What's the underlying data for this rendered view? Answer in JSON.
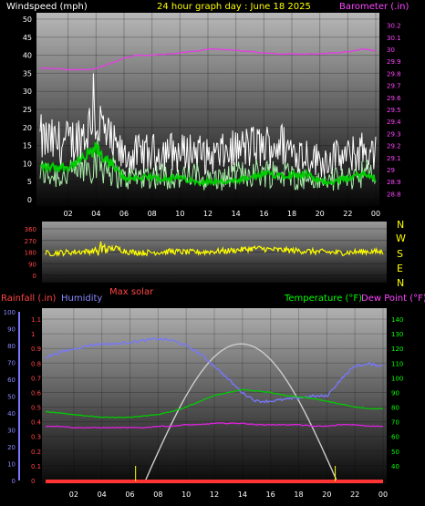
{
  "header": {
    "left_label": "Windspeed (mph)",
    "center_label": "24 hour graph day : June 18 2025",
    "right_label": "Barometer (.in)"
  },
  "wind_panel": {
    "y_left_ticks": [
      "0",
      "5",
      "10",
      "15",
      "20",
      "25",
      "30",
      "35",
      "40",
      "45",
      "50"
    ],
    "y_right_ticks": [
      "28.8",
      "28.9",
      "29",
      "29.1",
      "29.2",
      "29.3",
      "29.4",
      "29.5",
      "29.6",
      "29.7",
      "29.8",
      "29.9",
      "30",
      "30.1",
      "30.2"
    ],
    "x_ticks": [
      "02",
      "04",
      "06",
      "08",
      "10",
      "12",
      "14",
      "16",
      "18",
      "20",
      "22",
      "00"
    ]
  },
  "direction_panel": {
    "y_ticks": [
      "0",
      "90",
      "180",
      "270",
      "360"
    ],
    "compass_labels": [
      "N",
      "W",
      "S",
      "E",
      "N"
    ],
    "max_solar_label": "Max solar"
  },
  "bottom_panel": {
    "rainfall_label": "Rainfall (.in)",
    "humidity_label": "Humidity",
    "temperature_label": "Temperature (°F)",
    "dewpoint_label": "Dew Point (°F)",
    "humidity_ticks": [
      "0",
      "10",
      "20",
      "30",
      "40",
      "50",
      "60",
      "70",
      "80",
      "90",
      "100"
    ],
    "rain_ticks": [
      "0",
      "0.1",
      "0.2",
      "0.3",
      "0.4",
      "0.5",
      "0.6",
      "0.7",
      "0.8",
      "0.9",
      "1",
      "1.1"
    ],
    "temp_ticks": [
      "40",
      "50",
      "60",
      "70",
      "80",
      "90",
      "100",
      "110",
      "120",
      "130",
      "140"
    ],
    "x_ticks": [
      "02",
      "04",
      "06",
      "08",
      "10",
      "12",
      "14",
      "16",
      "18",
      "20",
      "22",
      "00"
    ]
  },
  "colors": {
    "gust": "#ffffff",
    "wind_avg": "#aaeeaa",
    "wind_smooth": "#00cc00",
    "barometer": "#e040e0",
    "direction": "#ffff00",
    "humidity": "#7777ff",
    "temperature": "#00cc00",
    "dewpoint": "#dd22dd",
    "solar": "#cccccc",
    "rain": "#ff3333",
    "label_red": "#ff4444",
    "label_yellow": "#ffff00",
    "label_green": "#00ff00",
    "label_magenta": "#ff44ff",
    "label_blue": "#8888ff"
  },
  "chart_data": [
    {
      "type": "line",
      "title": "24 hour graph day : June 18 2025",
      "xlabel": "",
      "ylabel": "Windspeed (mph)",
      "y2label": "Barometer (.in)",
      "ylim": [
        0,
        50
      ],
      "y2lim": [
        28.75,
        30.25
      ],
      "x": [
        0,
        1,
        2,
        3,
        4,
        5,
        6,
        7,
        8,
        9,
        10,
        11,
        12,
        13,
        14,
        15,
        16,
        17,
        18,
        19,
        20,
        21,
        22,
        23,
        24
      ],
      "series": [
        {
          "name": "Gust",
          "values": [
            17,
            16,
            16,
            18,
            23,
            16,
            12,
            13,
            13,
            14,
            13,
            14,
            12,
            13,
            14,
            15,
            15,
            16,
            14,
            13,
            11,
            12,
            12,
            14,
            13
          ]
        },
        {
          "name": "Average",
          "values": [
            8,
            7,
            7,
            9,
            12,
            9,
            6,
            7,
            7,
            7,
            6,
            7,
            6,
            6,
            7,
            8,
            8,
            8,
            7,
            6,
            5,
            6,
            6,
            8,
            7
          ]
        },
        {
          "name": "Average smoothed",
          "values": [
            9,
            9,
            9,
            11,
            14,
            10,
            6,
            6,
            6,
            6,
            6,
            5,
            5,
            5,
            5,
            6,
            7,
            7,
            7,
            7,
            5,
            5,
            6,
            7,
            6
          ]
        },
        {
          "name": "Barometer",
          "values": [
            29.84,
            29.84,
            29.83,
            29.83,
            29.84,
            29.88,
            29.93,
            29.95,
            29.95,
            29.96,
            29.97,
            29.98,
            30.0,
            30.0,
            29.99,
            29.98,
            29.97,
            29.96,
            29.96,
            29.96,
            29.96,
            29.97,
            29.98,
            30.0,
            29.99
          ]
        }
      ]
    },
    {
      "type": "line",
      "ylabel": "Wind direction",
      "ylim": [
        0,
        360
      ],
      "x": [
        0,
        1,
        2,
        3,
        4,
        5,
        6,
        7,
        8,
        9,
        10,
        11,
        12,
        13,
        14,
        15,
        16,
        17,
        18,
        19,
        20,
        21,
        22,
        23,
        24
      ],
      "series": [
        {
          "name": "Wind direction",
          "values": [
            170,
            175,
            180,
            185,
            200,
            210,
            180,
            175,
            180,
            185,
            180,
            180,
            185,
            190,
            200,
            210,
            200,
            195,
            190,
            185,
            180,
            175,
            180,
            185,
            180
          ]
        }
      ]
    },
    {
      "type": "line",
      "ylabel": "Humidity",
      "y2label": "Temperature (°F)",
      "ylim": [
        0,
        100
      ],
      "y2lim": [
        30,
        145
      ],
      "rainlim": [
        0,
        1.15
      ],
      "x": [
        0,
        1,
        2,
        3,
        4,
        5,
        6,
        7,
        8,
        9,
        10,
        11,
        12,
        13,
        14,
        15,
        16,
        17,
        18,
        19,
        20,
        21,
        22,
        23,
        24
      ],
      "series": [
        {
          "name": "Humidity",
          "values": [
            73,
            76,
            78,
            80,
            81,
            81,
            82,
            83,
            84,
            83,
            80,
            75,
            68,
            60,
            52,
            47,
            47,
            48,
            49,
            50,
            50,
            60,
            68,
            69,
            68
          ]
        },
        {
          "name": "Temperature",
          "values": [
            77,
            76,
            75,
            74,
            73,
            73,
            73,
            74,
            75,
            77,
            80,
            84,
            88,
            90,
            92,
            91,
            90,
            88,
            87,
            86,
            84,
            82,
            80,
            79,
            79
          ]
        },
        {
          "name": "Dew Point",
          "values": [
            67,
            67,
            66,
            66,
            66,
            66,
            66,
            66,
            67,
            67,
            68,
            68,
            69,
            69,
            69,
            68,
            68,
            68,
            68,
            67,
            67,
            68,
            68,
            67,
            67
          ]
        },
        {
          "name": "Max solar",
          "values": [
            0,
            0,
            0,
            0,
            0,
            0,
            0,
            2,
            12,
            32,
            50,
            64,
            72,
            79,
            81,
            80,
            74,
            62,
            45,
            25,
            8,
            0,
            0,
            0,
            0
          ]
        },
        {
          "name": "Rainfall",
          "values": [
            0,
            0,
            0,
            0,
            0,
            0,
            0,
            0,
            0,
            0,
            0,
            0,
            0,
            0,
            0,
            0,
            0,
            0,
            0,
            0,
            0,
            0,
            0,
            0,
            0
          ]
        }
      ]
    }
  ]
}
